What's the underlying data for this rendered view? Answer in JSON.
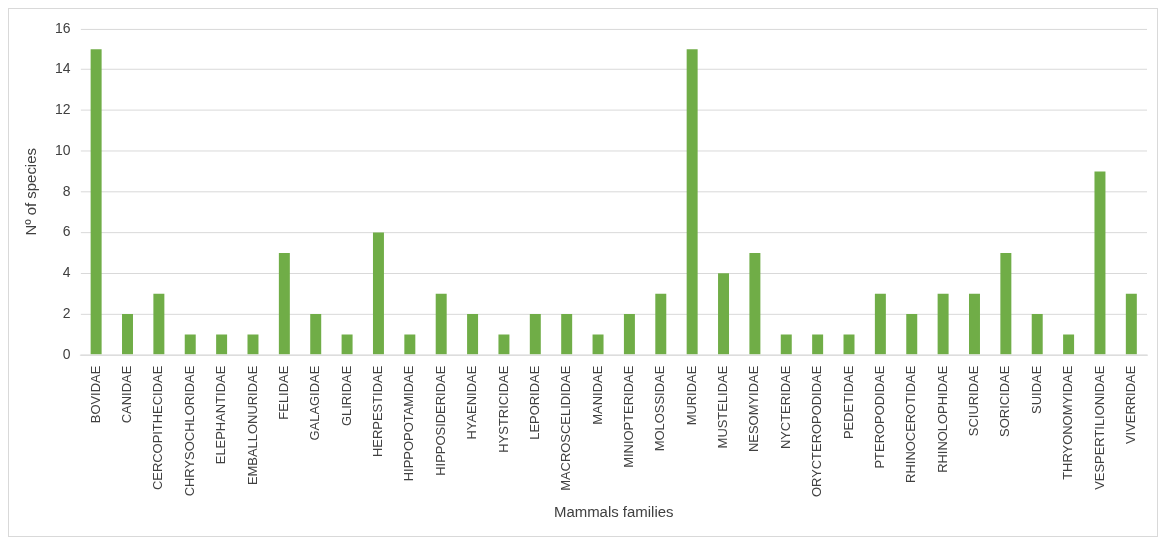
{
  "chart_data": {
    "type": "bar",
    "xlabel": "Mammals families",
    "ylabel": "Nº of species",
    "categories": [
      "BOVIDAE",
      "CANIDAE",
      "CERCOPITHECIDAE",
      "CHRYSOCHLORIDAE",
      "ELEPHANTIDAE",
      "EMBALLONURIDAE",
      "FELIDAE",
      "GALAGIDAE",
      "GLIRIDAE",
      "HERPESTIDAE",
      "HIPPOPOTAMIDAE",
      "HIPPOSIDERIDAE",
      "HYAENIDAE",
      "HYSTRICIDAE",
      "LEPORIDAE",
      "MACROSCELIDIDAE",
      "MANIDAE",
      "MINIOPTERIDAE",
      "MOLOSSIDAE",
      "MURIDAE",
      "MUSTELIDAE",
      "NESOMYIDAE",
      "NYCTERIDAE",
      "ORYCTEROPODIDAE",
      "PEDETIDAE",
      "PTEROPODIDAE",
      "RHINOCEROTIDAE",
      "RHINOLOPHIDAE",
      "SCIURIDAE",
      "SORICIDAE",
      "SUIDAE",
      "THRYONOMYIDAE",
      "VESPERTILIONIDAE",
      "VIVERRIDAE"
    ],
    "values": [
      15,
      2,
      3,
      1,
      1,
      1,
      5,
      2,
      1,
      6,
      1,
      3,
      2,
      1,
      2,
      2,
      1,
      2,
      3,
      15,
      4,
      5,
      1,
      1,
      1,
      3,
      2,
      3,
      3,
      5,
      2,
      1,
      9,
      3
    ],
    "color": "#70ad47",
    "ylim": [
      0,
      16
    ],
    "yticks": [
      0,
      2,
      4,
      6,
      8,
      10,
      12,
      14,
      16
    ],
    "grid": "y",
    "legend": false
  }
}
